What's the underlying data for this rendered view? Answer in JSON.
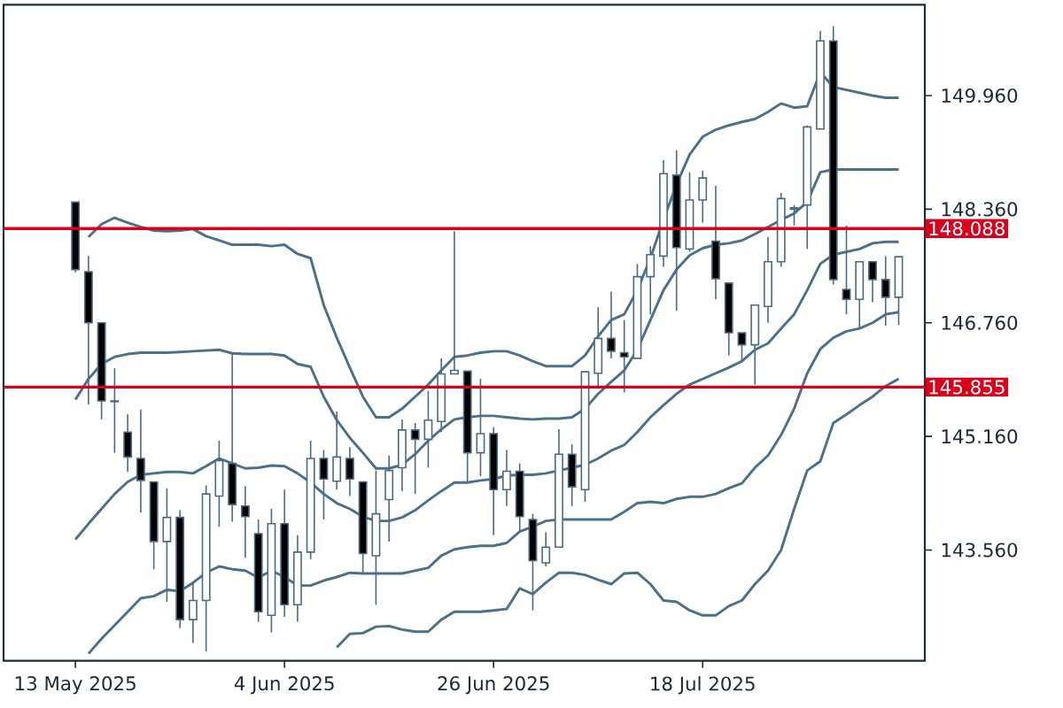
{
  "chart_data": {
    "type": "candlestick",
    "color": "#4a6b85",
    "categories": [
      "13 May 2025",
      null,
      null,
      null,
      null,
      null,
      null,
      null,
      null,
      null,
      null,
      null,
      null,
      null,
      null,
      null,
      "4 Jun 2025",
      null,
      null,
      null,
      null,
      null,
      null,
      null,
      null,
      null,
      null,
      null,
      null,
      null,
      null,
      null,
      "26 Jun 2025",
      null,
      null,
      null,
      null,
      null,
      null,
      null,
      null,
      null,
      null,
      null,
      null,
      null,
      null,
      null,
      "18 Jul 2025",
      null,
      null,
      null,
      null,
      null,
      null,
      null,
      null,
      null,
      null,
      null,
      null,
      null,
      null,
      null
    ],
    "ohlc": [
      [
        148.46,
        148.46,
        147.47,
        147.51
      ],
      [
        147.48,
        147.7,
        145.61,
        146.76
      ],
      [
        146.76,
        146.76,
        145.4,
        145.66
      ],
      [
        145.66,
        146.12,
        144.93,
        145.65
      ],
      [
        145.22,
        145.47,
        144.66,
        144.87
      ],
      [
        144.85,
        145.54,
        144.09,
        144.54
      ],
      [
        144.52,
        144.52,
        143.29,
        143.68
      ],
      [
        143.68,
        144.43,
        142.83,
        144.02
      ],
      [
        144.02,
        144.12,
        142.46,
        142.58
      ],
      [
        142.58,
        143.1,
        142.25,
        142.85
      ],
      [
        142.85,
        144.47,
        142.13,
        144.35
      ],
      [
        144.32,
        145.1,
        143.89,
        144.82
      ],
      [
        144.78,
        146.32,
        143.96,
        144.2
      ],
      [
        144.18,
        144.46,
        143.45,
        144.03
      ],
      [
        143.79,
        143.99,
        142.55,
        142.69
      ],
      [
        142.64,
        144.14,
        142.4,
        143.93
      ],
      [
        143.93,
        144.41,
        142.62,
        142.79
      ],
      [
        142.79,
        143.77,
        142.55,
        143.53
      ],
      [
        143.53,
        145.1,
        143.43,
        144.85
      ],
      [
        144.85,
        144.97,
        143.99,
        144.56
      ],
      [
        144.53,
        145.51,
        144.41,
        144.87
      ],
      [
        144.85,
        145.01,
        144.32,
        144.56
      ],
      [
        144.52,
        144.52,
        143.23,
        143.51
      ],
      [
        143.48,
        144.68,
        142.79,
        144.07
      ],
      [
        144.27,
        144.89,
        143.68,
        144.68
      ],
      [
        144.72,
        145.4,
        144.39,
        145.25
      ],
      [
        145.25,
        145.35,
        144.35,
        145.12
      ],
      [
        145.12,
        145.8,
        144.72,
        145.39
      ],
      [
        145.37,
        146.26,
        145.22,
        146.04
      ],
      [
        146.04,
        148.05,
        146.04,
        146.09
      ],
      [
        146.08,
        146.08,
        144.52,
        144.93
      ],
      [
        144.93,
        145.97,
        144.6,
        145.2
      ],
      [
        145.2,
        145.29,
        143.77,
        144.41
      ],
      [
        144.41,
        144.97,
        144.18,
        144.67
      ],
      [
        144.67,
        144.78,
        143.83,
        144.03
      ],
      [
        143.99,
        144.07,
        142.71,
        143.41
      ],
      [
        143.38,
        143.81,
        143.33,
        143.6
      ],
      [
        143.6,
        145.26,
        143.6,
        144.91
      ],
      [
        144.91,
        145.05,
        144.18,
        144.45
      ],
      [
        144.41,
        146.07,
        144.24,
        146.07
      ],
      [
        146.05,
        146.98,
        145.85,
        146.54
      ],
      [
        146.54,
        147.2,
        146.26,
        146.36
      ],
      [
        146.34,
        146.8,
        145.78,
        146.28
      ],
      [
        146.26,
        147.59,
        146.26,
        147.41
      ],
      [
        147.41,
        147.84,
        146.88,
        147.72
      ],
      [
        147.7,
        149.05,
        147.55,
        148.86
      ],
      [
        148.84,
        149.19,
        146.93,
        147.82
      ],
      [
        147.8,
        148.88,
        147.76,
        148.49
      ],
      [
        148.49,
        148.9,
        148.17,
        148.8
      ],
      [
        147.91,
        148.69,
        147.09,
        147.38
      ],
      [
        147.32,
        147.32,
        146.3,
        146.62
      ],
      [
        146.62,
        146.62,
        146.22,
        146.45
      ],
      [
        146.45,
        147.01,
        145.89,
        147.01
      ],
      [
        146.99,
        147.97,
        146.76,
        147.62
      ],
      [
        147.62,
        148.59,
        147.55,
        148.51
      ],
      [
        148.36,
        148.42,
        148.13,
        148.38
      ],
      [
        148.42,
        149.54,
        147.8,
        149.52
      ],
      [
        149.49,
        150.87,
        149.49,
        150.73
      ],
      [
        150.73,
        150.94,
        147.3,
        147.37
      ],
      [
        147.23,
        148.13,
        146.88,
        147.09
      ],
      [
        147.09,
        147.62,
        146.69,
        147.62
      ],
      [
        147.62,
        147.62,
        147.05,
        147.37
      ],
      [
        147.37,
        147.7,
        146.72,
        147.12
      ],
      [
        147.12,
        147.69,
        146.73,
        147.69
      ]
    ],
    "series": [
      {
        "type": "line",
        "color": "#4d7088",
        "values": [
          null,
          147.97,
          148.15,
          148.24,
          148.17,
          148.11,
          148.06,
          148.05,
          148.06,
          148.08,
          147.98,
          147.92,
          147.86,
          147.86,
          147.86,
          147.84,
          147.86,
          147.73,
          147.67,
          147.01,
          146.55,
          146.13,
          145.72,
          145.43,
          145.43,
          145.55,
          145.72,
          145.89,
          146.09,
          146.28,
          146.3,
          146.34,
          146.36,
          146.36,
          146.3,
          146.22,
          146.15,
          146.15,
          146.15,
          146.3,
          146.57,
          146.8,
          146.88,
          147.22,
          147.67,
          148.21,
          148.71,
          149.13,
          149.38,
          149.48,
          149.54,
          149.59,
          149.63,
          149.73,
          149.85,
          149.79,
          149.81,
          150.29,
          150.08,
          150.04,
          150.0,
          149.96,
          149.93,
          149.93
        ]
      },
      {
        "type": "line",
        "color": "#4d7088",
        "values": [
          145.68,
          145.97,
          146.18,
          146.28,
          146.32,
          146.34,
          146.34,
          146.34,
          146.35,
          146.36,
          146.37,
          146.38,
          146.33,
          146.32,
          146.32,
          146.32,
          146.3,
          146.18,
          146.14,
          145.72,
          145.39,
          145.14,
          144.93,
          144.71,
          144.71,
          144.76,
          144.91,
          145.1,
          145.26,
          145.4,
          145.43,
          145.45,
          145.45,
          145.43,
          145.41,
          145.4,
          145.41,
          145.41,
          145.43,
          145.55,
          145.76,
          145.93,
          146.09,
          146.38,
          146.8,
          147.22,
          147.51,
          147.71,
          147.81,
          147.86,
          147.88,
          147.92,
          148.01,
          148.11,
          148.21,
          148.3,
          148.46,
          148.88,
          148.92,
          148.92,
          148.92,
          148.92,
          148.92,
          148.92
        ]
      },
      {
        "type": "line",
        "color": "#4d7088",
        "values": [
          143.71,
          143.93,
          144.14,
          144.35,
          144.52,
          144.62,
          144.64,
          144.66,
          144.66,
          144.64,
          144.74,
          144.85,
          144.78,
          144.71,
          144.72,
          144.75,
          144.74,
          144.64,
          144.51,
          144.35,
          144.22,
          144.14,
          144.03,
          143.97,
          143.97,
          144.02,
          144.12,
          144.26,
          144.39,
          144.51,
          144.51,
          144.54,
          144.56,
          144.61,
          144.62,
          144.62,
          144.64,
          144.68,
          144.72,
          144.76,
          144.85,
          144.96,
          145.04,
          145.22,
          145.43,
          145.6,
          145.76,
          145.89,
          145.97,
          146.05,
          146.13,
          146.22,
          146.38,
          146.47,
          146.68,
          146.88,
          147.22,
          147.59,
          147.72,
          147.76,
          147.8,
          147.88,
          147.9,
          147.9
        ]
      },
      {
        "type": "line",
        "color": "#4d7088",
        "values": [
          null,
          142.1,
          142.31,
          142.5,
          142.69,
          142.88,
          142.91,
          143.0,
          142.98,
          143.1,
          143.24,
          143.33,
          143.29,
          143.27,
          143.17,
          143.27,
          143.18,
          143.06,
          143.06,
          143.13,
          143.18,
          143.24,
          143.23,
          143.23,
          143.23,
          143.23,
          143.27,
          143.31,
          143.48,
          143.57,
          143.6,
          143.62,
          143.62,
          143.66,
          143.82,
          143.89,
          143.97,
          143.99,
          143.99,
          143.99,
          143.99,
          143.99,
          144.1,
          144.22,
          144.24,
          144.22,
          144.28,
          144.31,
          144.31,
          144.35,
          144.43,
          144.5,
          144.72,
          144.89,
          145.18,
          145.55,
          146.05,
          146.39,
          146.55,
          146.64,
          146.68,
          146.76,
          146.88,
          146.91
        ]
      },
      {
        "type": "line",
        "color": "#4d7088",
        "values": [
          null,
          null,
          null,
          null,
          null,
          null,
          null,
          null,
          null,
          null,
          null,
          null,
          null,
          null,
          null,
          null,
          null,
          null,
          null,
          null,
          142.19,
          142.38,
          142.39,
          142.48,
          142.49,
          142.44,
          142.41,
          142.41,
          142.58,
          142.69,
          142.69,
          142.69,
          142.71,
          142.73,
          143.02,
          142.94,
          143.1,
          143.24,
          143.24,
          143.21,
          143.14,
          143.08,
          143.23,
          143.24,
          143.08,
          142.85,
          142.83,
          142.71,
          142.64,
          142.64,
          142.77,
          142.85,
          143.08,
          143.27,
          143.56,
          144.14,
          144.68,
          144.81,
          145.35,
          145.47,
          145.6,
          145.72,
          145.87,
          145.97
        ]
      }
    ],
    "ylim": [
      142.0,
      151.24
    ],
    "yticks": [
      {
        "value": 143.56,
        "label": "143.560"
      },
      {
        "value": 145.16,
        "label": "145.160"
      },
      {
        "value": 146.76,
        "label": "146.760"
      },
      {
        "value": 148.36,
        "label": "148.360"
      },
      {
        "value": 149.96,
        "label": "149.960"
      }
    ],
    "ref_lines": [
      {
        "axis": "y",
        "value": 148.088,
        "label": "148.088",
        "color": "#d9001b"
      },
      {
        "axis": "y",
        "value": 145.855,
        "label": "145.855",
        "color": "#d9001b"
      }
    ]
  }
}
